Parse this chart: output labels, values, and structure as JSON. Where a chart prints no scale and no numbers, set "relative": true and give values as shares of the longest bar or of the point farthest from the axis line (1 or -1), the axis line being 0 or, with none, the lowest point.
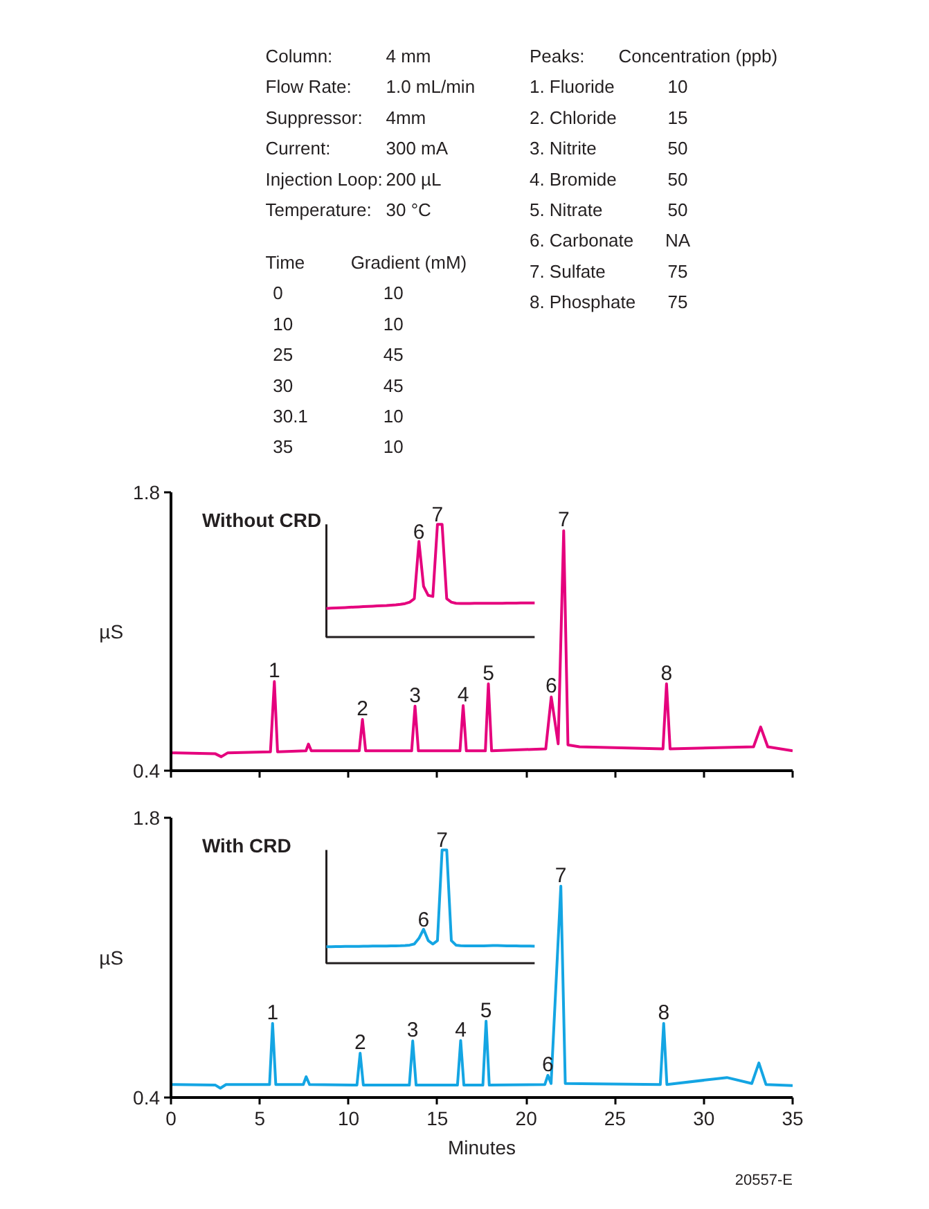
{
  "chart_data": [
    {
      "type": "other",
      "annotations": [
        "Column:",
        "4 mm",
        "Flow Rate:",
        "1.0 mL/min",
        "Suppressor:",
        "4mm",
        "Current:",
        "300 mA",
        "Injection Loop:",
        "200 µL",
        "Temperature:",
        "30 °C",
        "Time",
        "Gradient (mM)",
        "0",
        "10",
        "10",
        "10",
        "25",
        "45",
        "30",
        "45",
        "30.1",
        "10",
        "35",
        "10",
        "Peaks:",
        "Concentration (ppb)",
        "1. Fluoride",
        "10",
        "2. Chloride",
        "15",
        "3. Nitrite",
        "50",
        "4. Bromide",
        "50",
        "5. Nitrate",
        "50",
        "6. Carbonate",
        "NA",
        "7. Sulfate",
        "75",
        "8. Phosphate",
        "75"
      ]
    },
    {
      "type": "line",
      "title": "Without CRD",
      "ylabel": "µS",
      "xlim": [
        0,
        35
      ],
      "ylim": [
        0.4,
        1.8
      ],
      "xticks": [
        0,
        5,
        10,
        15,
        20,
        25,
        30,
        35
      ],
      "yticks": [
        0.4,
        1.8
      ],
      "tick_labels": "y",
      "x": [
        0,
        2.5,
        2.83,
        3.2,
        5.6,
        5.82,
        6.0,
        7.6,
        7.74,
        7.9,
        10.6,
        10.78,
        10.96,
        13.55,
        13.74,
        13.93,
        16.27,
        16.45,
        16.63,
        17.7,
        17.87,
        18.05,
        21.1,
        21.41,
        21.8,
        22.11,
        22.35,
        23,
        27.7,
        27.9,
        28.1,
        32.8,
        33.2,
        33.6,
        35
      ],
      "series": [
        {
          "color": "#e5007d",
          "values": [
            0.49,
            0.485,
            0.47,
            0.49,
            0.495,
            0.848,
            0.495,
            0.5,
            0.534,
            0.5,
            0.5,
            0.658,
            0.5,
            0.5,
            0.725,
            0.5,
            0.5,
            0.727,
            0.5,
            0.5,
            0.837,
            0.5,
            0.51,
            0.771,
            0.535,
            1.607,
            0.53,
            0.52,
            0.51,
            0.837,
            0.51,
            0.52,
            0.62,
            0.52,
            0.5
          ]
        }
      ],
      "annotations": [
        {
          "text": "1",
          "x": 5.82,
          "y": 0.848
        },
        {
          "text": "2",
          "x": 10.78,
          "y": 0.658
        },
        {
          "text": "3",
          "x": 13.74,
          "y": 0.725
        },
        {
          "text": "4",
          "x": 16.45,
          "y": 0.727
        },
        {
          "text": "5",
          "x": 17.87,
          "y": 0.837
        },
        {
          "text": "6",
          "x": 21.41,
          "y": 0.771
        },
        {
          "text": "7",
          "x": 22.11,
          "y": 1.607
        },
        {
          "text": "8",
          "x": 27.9,
          "y": 0.837
        }
      ]
    },
    {
      "type": "line",
      "relative": true,
      "categories": [
        null,
        null,
        null,
        null,
        null,
        null,
        null,
        null,
        null,
        null,
        null,
        null,
        null,
        null,
        null,
        null,
        null,
        null,
        null,
        null,
        null,
        null,
        null,
        null,
        null,
        null,
        null,
        null,
        null,
        null,
        null,
        null,
        null,
        null,
        null,
        null,
        null,
        null,
        null,
        null,
        null,
        null,
        null,
        null,
        null,
        null
      ],
      "series": [
        {
          "color": "#e5007d",
          "values": [
            0.254,
            0.256,
            0.258,
            0.26,
            0.262,
            0.264,
            0.266,
            0.268,
            0.27,
            0.272,
            0.274,
            0.276,
            0.278,
            0.28,
            0.283,
            0.286,
            0.29,
            0.297,
            0.31,
            0.34,
            0.848,
            0.45,
            0.37,
            0.36,
            1.0,
            1.0,
            0.34,
            0.31,
            0.3,
            0.298,
            0.298,
            0.298,
            0.299,
            0.299,
            0.299,
            0.3,
            0.3,
            0.3,
            0.3,
            0.301,
            0.301,
            0.301,
            0.302,
            0.302,
            0.303,
            0.303
          ]
        }
      ],
      "annotations": [
        {
          "text": "6",
          "y": 0.848
        },
        {
          "text": "7",
          "y": 1.0
        }
      ]
    },
    {
      "type": "line",
      "title": "With CRD",
      "ylabel": "µS",
      "xlabel": "Minutes",
      "xlim": [
        0,
        35
      ],
      "ylim": [
        0.4,
        1.8
      ],
      "xticks": [
        0,
        5,
        10,
        15,
        20,
        25,
        30,
        35
      ],
      "yticks": [
        0.4,
        1.8
      ],
      "x": [
        0,
        2.5,
        2.78,
        3.1,
        5.55,
        5.72,
        5.9,
        7.45,
        7.61,
        7.8,
        10.47,
        10.65,
        10.83,
        13.42,
        13.61,
        13.8,
        16.13,
        16.31,
        16.49,
        17.56,
        17.74,
        17.92,
        21.05,
        21.22,
        21.4,
        21.95,
        22.2,
        27.55,
        27.74,
        27.92,
        31.3,
        32.7,
        33.1,
        33.5,
        35
      ],
      "series": [
        {
          "color": "#14a5e3",
          "values": [
            0.465,
            0.462,
            0.447,
            0.465,
            0.465,
            0.771,
            0.465,
            0.465,
            0.504,
            0.465,
            0.462,
            0.622,
            0.462,
            0.462,
            0.683,
            0.462,
            0.462,
            0.685,
            0.462,
            0.462,
            0.782,
            0.462,
            0.465,
            0.511,
            0.47,
            1.458,
            0.47,
            0.465,
            0.771,
            0.465,
            0.5,
            0.47,
            0.573,
            0.465,
            0.46
          ]
        }
      ],
      "annotations": [
        {
          "text": "1",
          "x": 5.72,
          "y": 0.771
        },
        {
          "text": "2",
          "x": 10.65,
          "y": 0.622
        },
        {
          "text": "3",
          "x": 13.61,
          "y": 0.683
        },
        {
          "text": "4",
          "x": 16.31,
          "y": 0.685
        },
        {
          "text": "5",
          "x": 17.74,
          "y": 0.782
        },
        {
          "text": "6",
          "x": 21.22,
          "y": 0.511
        },
        {
          "text": "7",
          "x": 21.95,
          "y": 1.458
        },
        {
          "text": "8",
          "x": 27.74,
          "y": 0.771
        },
        "20557-E"
      ]
    },
    {
      "type": "line",
      "relative": true,
      "categories": [
        null,
        null,
        null,
        null,
        null,
        null,
        null,
        null,
        null,
        null,
        null,
        null,
        null,
        null,
        null,
        null,
        null,
        null,
        null,
        null,
        null,
        null,
        null,
        null,
        null,
        null,
        null,
        null,
        null,
        null,
        null,
        null,
        null,
        null,
        null,
        null,
        null,
        null,
        null,
        null,
        null,
        null,
        null,
        null,
        null,
        null
      ],
      "series": [
        {
          "color": "#14a5e3",
          "values": [
            0.146,
            0.146,
            0.147,
            0.147,
            0.148,
            0.148,
            0.149,
            0.149,
            0.15,
            0.15,
            0.151,
            0.151,
            0.152,
            0.152,
            0.153,
            0.154,
            0.155,
            0.157,
            0.16,
            0.17,
            0.22,
            0.3,
            0.2,
            0.17,
            0.2,
            1.0,
            1.0,
            0.2,
            0.16,
            0.155,
            0.154,
            0.153,
            0.153,
            0.153,
            0.154,
            0.155,
            0.156,
            0.156,
            0.155,
            0.154,
            0.153,
            0.153,
            0.152,
            0.152,
            0.151,
            0.15
          ]
        }
      ],
      "annotations": [
        {
          "text": "6",
          "y": 0.3
        },
        {
          "text": "7",
          "y": 1.0
        }
      ]
    }
  ]
}
